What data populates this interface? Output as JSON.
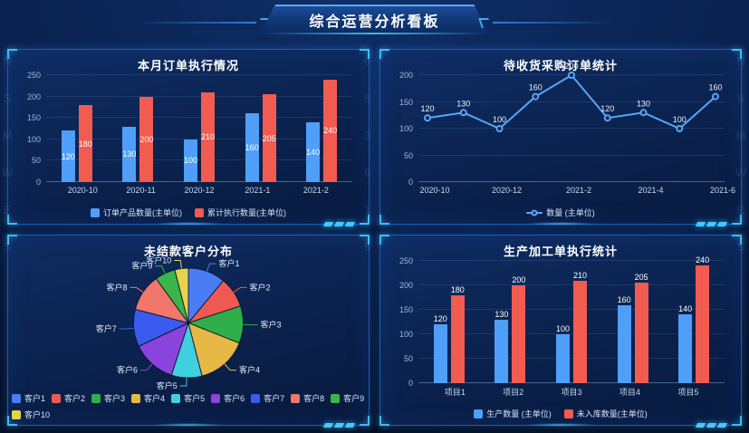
{
  "theme": {
    "accent": "#45c8ff",
    "bar_blue": "#4f9ef8",
    "bar_red": "#f25b50",
    "panel_border": "#1c5cae",
    "background": "#081c42"
  },
  "header": {
    "title": "综合运营分析看板"
  },
  "background": {
    "watermark_chars": [
      "N",
      "0",
      "S",
      "8",
      "M",
      "3",
      "W",
      "6",
      "E",
      "1",
      "S",
      "5"
    ]
  },
  "chart_data": [
    {
      "type": "bar",
      "title": "本月订单执行情况",
      "categories": [
        "2020-10",
        "2020-11",
        "2020-12",
        "2021-1",
        "2021-2"
      ],
      "series": [
        {
          "name": "订单产品数量(主单位)",
          "color": "#4f9ef8",
          "values": [
            120,
            130,
            100,
            160,
            140
          ]
        },
        {
          "name": "累计执行数量(主单位)",
          "color": "#f25b50",
          "values": [
            180,
            200,
            210,
            205,
            240
          ]
        }
      ],
      "yticks": [
        0,
        50,
        100,
        150,
        200,
        250
      ],
      "ylim": [
        0,
        250
      ],
      "label_position": "center",
      "legend_position": "bottom",
      "grid": true
    },
    {
      "type": "line",
      "title": "待收货采购订单统计",
      "x_ticks": [
        "2020-10",
        "2020-12",
        "2021-2",
        "2021-4",
        "2021-6"
      ],
      "x_tick_indices": [
        0,
        2,
        4,
        6,
        8
      ],
      "series": [
        {
          "name": "数量 (主单位)",
          "color": "#58a6f8",
          "values": [
            120,
            130,
            100,
            160,
            200,
            120,
            130,
            100,
            160
          ]
        }
      ],
      "yticks": [
        0,
        50,
        100,
        150,
        200
      ],
      "ylim": [
        0,
        200
      ],
      "legend_position": "bottom",
      "grid": true
    },
    {
      "type": "pie",
      "title": "未结款客户分布",
      "slices": [
        {
          "name": "客户1",
          "value": 11,
          "color": "#4a7df5"
        },
        {
          "name": "客户2",
          "value": 9,
          "color": "#ee5a52"
        },
        {
          "name": "客户3",
          "value": 11,
          "color": "#2fae49"
        },
        {
          "name": "客户4",
          "value": 15,
          "color": "#e6b845"
        },
        {
          "name": "客户5",
          "value": 9,
          "color": "#3ed0dd"
        },
        {
          "name": "客户6",
          "value": 13,
          "color": "#8a43dd"
        },
        {
          "name": "客户7",
          "value": 11,
          "color": "#3a5bf0"
        },
        {
          "name": "客户8",
          "value": 11,
          "color": "#f0776a"
        },
        {
          "name": "客户9",
          "value": 6,
          "color": "#3bb54a"
        },
        {
          "name": "客户10",
          "value": 4,
          "color": "#e3d44b"
        }
      ],
      "legend_position": "bottom"
    },
    {
      "type": "bar",
      "title": "生产加工单执行统计",
      "categories": [
        "项目1",
        "项目2",
        "项目3",
        "项目4",
        "项目5"
      ],
      "series": [
        {
          "name": "生产数量 (主单位)",
          "color": "#4f9ef8",
          "values": [
            120,
            130,
            100,
            160,
            140
          ]
        },
        {
          "name": "未入库数量(主单位)",
          "color": "#f25b50",
          "values": [
            180,
            200,
            210,
            205,
            240
          ]
        }
      ],
      "yticks": [
        0,
        50,
        100,
        150,
        200,
        250
      ],
      "ylim": [
        0,
        250
      ],
      "label_position": "top",
      "legend_position": "bottom",
      "grid": true
    }
  ]
}
